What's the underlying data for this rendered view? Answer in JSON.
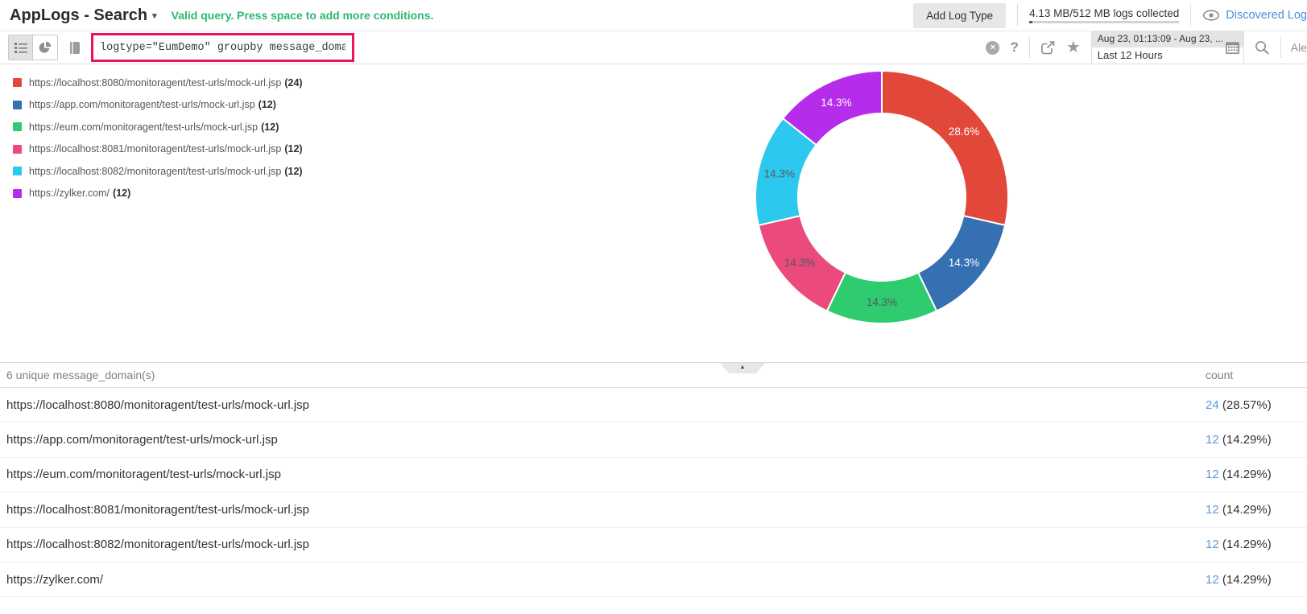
{
  "header": {
    "title": "AppLogs - Search",
    "caret": "▾",
    "status_message": "Valid query. Press space to add more conditions.",
    "status_color": "#2eb873",
    "add_log_type_label": "Add Log Type",
    "usage_label": "4.13 MB/512 MB logs collected",
    "usage_fill_pct": "2%",
    "discovered_link_label": "Discovered Log",
    "link_color": "#4a90d9"
  },
  "toolbar": {
    "query": "logtype=\"EumDemo\" groupby message_domain",
    "query_border_color": "#ed1459",
    "clear_glyph": "×",
    "help_glyph": "?",
    "star_glyph": "★",
    "date_range": "Aug 23, 01:13:09 - Aug 23, ...",
    "date_preset": "Last 12 Hours",
    "alert_label": "Ale"
  },
  "chart_data": {
    "type": "pie",
    "subtype": "donut",
    "group_by": "message_domain",
    "direction": "clockwise",
    "start_angle_deg": 0,
    "inner_radius_ratio": 0.66,
    "legend_position": "left",
    "slices": [
      {
        "label": "https://localhost:8080/monitoragent/test-urls/mock-url.jsp",
        "count": 24,
        "count_label": "(24)",
        "pct_label": "28.6%",
        "color": "#e2483a",
        "label_color": "#ffffff"
      },
      {
        "label": "https://app.com/monitoragent/test-urls/mock-url.jsp",
        "count": 12,
        "count_label": "(12)",
        "pct_label": "14.3%",
        "color": "#3570b2",
        "label_color": "#ffffff"
      },
      {
        "label": "https://eum.com/monitoragent/test-urls/mock-url.jsp",
        "count": 12,
        "count_label": "(12)",
        "pct_label": "14.3%",
        "color": "#2ecb6f",
        "label_color": "#545a62"
      },
      {
        "label": "https://localhost:8081/monitoragent/test-urls/mock-url.jsp",
        "count": 12,
        "count_label": "(12)",
        "pct_label": "14.3%",
        "color": "#ea4a7c",
        "label_color": "#545a62"
      },
      {
        "label": "https://localhost:8082/monitoragent/test-urls/mock-url.jsp",
        "count": 12,
        "count_label": "(12)",
        "pct_label": "14.3%",
        "color": "#2cc8ee",
        "label_color": "#545a62"
      },
      {
        "label": "https://zylker.com/",
        "count": 12,
        "count_label": "(12)",
        "pct_label": "14.3%",
        "color": "#b52deb",
        "label_color": "#ffffff"
      }
    ]
  },
  "results_table": {
    "header": "6 unique message_domain(s)",
    "count_header": "count",
    "count_color": "#5f99d5",
    "rows": [
      {
        "url": "https://localhost:8080/monitoragent/test-urls/mock-url.jsp",
        "count": "24",
        "pct": " (28.57%)"
      },
      {
        "url": "https://app.com/monitoragent/test-urls/mock-url.jsp",
        "count": "12",
        "pct": " (14.29%)"
      },
      {
        "url": "https://eum.com/monitoragent/test-urls/mock-url.jsp",
        "count": "12",
        "pct": " (14.29%)"
      },
      {
        "url": "https://localhost:8081/monitoragent/test-urls/mock-url.jsp",
        "count": "12",
        "pct": " (14.29%)"
      },
      {
        "url": "https://localhost:8082/monitoragent/test-urls/mock-url.jsp",
        "count": "12",
        "pct": " (14.29%)"
      },
      {
        "url": "https://zylker.com/",
        "count": "12",
        "pct": " (14.29%)"
      }
    ]
  },
  "collapse": {
    "arrow": "▲"
  }
}
